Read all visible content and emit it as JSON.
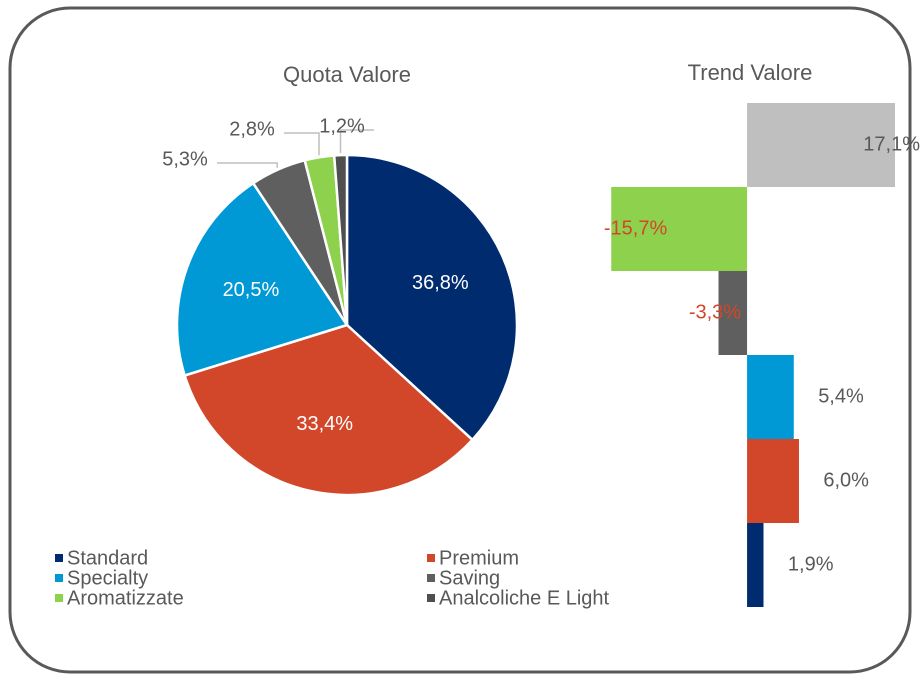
{
  "chart_data": [
    {
      "type": "pie",
      "title": "Quota Valore",
      "categories": [
        "Standard",
        "Premium",
        "Specialty",
        "Saving",
        "Aromatizzate",
        "Analcoliche E Light"
      ],
      "values": [
        36.8,
        33.4,
        20.5,
        5.3,
        2.8,
        1.2
      ],
      "value_labels": [
        "36,8%",
        "33,4%",
        "20,5%",
        "5,3%",
        "2,8%",
        "1,2%"
      ],
      "colors": [
        "#002b6f",
        "#d2472a",
        "#0099d6",
        "#5f5f5f",
        "#8dd14c",
        "#4f4f4f"
      ],
      "legend": "bottom"
    },
    {
      "type": "hbar",
      "title": "Trend Valore",
      "values": [
        1.9,
        6.0,
        5.4,
        -3.3,
        -15.7,
        17.1
      ],
      "value_labels": [
        "1,9%",
        "6,0%",
        "5,4%",
        "-3,3%",
        "-15,7%",
        "17,1%"
      ],
      "colors": [
        "#002b6f",
        "#d2472a",
        "#0099d6",
        "#5f5f5f",
        "#8dd14c",
        "#bfbfbf"
      ],
      "negative_label_color": "#d2472a",
      "xlim": [
        -17,
        17.1
      ]
    }
  ]
}
